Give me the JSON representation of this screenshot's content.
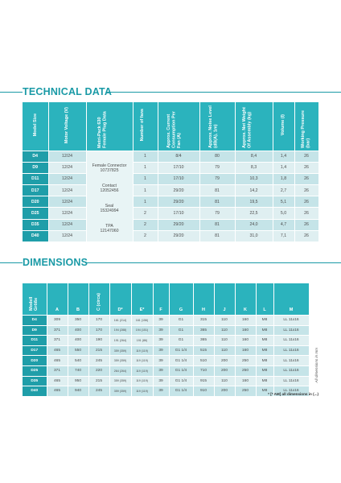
{
  "technical": {
    "title": "TECHNICAL DATA",
    "headers": [
      "Model Size",
      "Motor Voltage (V)",
      "Metri-Pack 630 Female Plug Data",
      "Number of fans",
      "Approx. Current Consumption Per Fan (A)",
      "Approx. Noise Level (dB(A), 1m)",
      "Approx. Net Weight Of Assembly (kg)",
      "Volume (l)",
      "Working Pressure (bar)"
    ],
    "plug_text": [
      "Female Connector",
      "10737825",
      "Contact",
      "12052456",
      "Seal",
      "15324994",
      "TPA",
      "12147060"
    ],
    "rows": [
      {
        "model": "D4",
        "voltage": "12/24",
        "fans": "1",
        "current": "8/4",
        "noise": "80",
        "weight": "8,4",
        "volume": "1,4",
        "pressure": "26"
      },
      {
        "model": "D9",
        "voltage": "12/24",
        "fans": "1",
        "current": "17/10",
        "noise": "79",
        "weight": "8,3",
        "volume": "1,4",
        "pressure": "26"
      },
      {
        "model": "D11",
        "voltage": "12/24",
        "fans": "1",
        "current": "17/10",
        "noise": "79",
        "weight": "10,3",
        "volume": "1,8",
        "pressure": "26"
      },
      {
        "model": "D17",
        "voltage": "12/24",
        "fans": "1",
        "current": "29/20",
        "noise": "81",
        "weight": "14,2",
        "volume": "2,7",
        "pressure": "26"
      },
      {
        "model": "D20",
        "voltage": "12/24",
        "fans": "1",
        "current": "29/20",
        "noise": "81",
        "weight": "19,5",
        "volume": "5,1",
        "pressure": "26"
      },
      {
        "model": "D25",
        "voltage": "12/24",
        "fans": "2",
        "current": "17/10",
        "noise": "79",
        "weight": "22,5",
        "volume": "5,0",
        "pressure": "26"
      },
      {
        "model": "D35",
        "voltage": "12/24",
        "fans": "2",
        "current": "29/20",
        "noise": "81",
        "weight": "24,0",
        "volume": "4,7",
        "pressure": "26"
      },
      {
        "model": "D40",
        "voltage": "12/24",
        "fans": "2",
        "current": "29/20",
        "noise": "81",
        "weight": "31,0",
        "volume": "7,1",
        "pressure": "26"
      }
    ]
  },
  "dimensions": {
    "title": "DIMENSIONS",
    "headers": [
      "Modell Größe",
      "A",
      "B",
      "C (circa)",
      "D*",
      "E*",
      "F",
      "G",
      "H",
      "J",
      "K",
      "L",
      "M"
    ],
    "rows": [
      [
        "D4",
        "309",
        "350",
        "170",
        "161 (214)",
        "161 (156)",
        "39",
        "G1",
        "315",
        "110",
        "160",
        "M8",
        "LL 11x16"
      ],
      [
        "D9",
        "371",
        "400",
        "170",
        "194 (288)",
        "194 (151)",
        "39",
        "G1",
        "365",
        "110",
        "160",
        "M8",
        "LL 11x16"
      ],
      [
        "D11",
        "371",
        "400",
        "190",
        "191 (264)",
        "191 (86)",
        "39",
        "G1",
        "365",
        "110",
        "160",
        "M8",
        "LL 11x16"
      ],
      [
        "D17",
        "465",
        "550",
        "215",
        "359 (359)",
        "119 (119)",
        "39",
        "G1 1/4",
        "515",
        "110",
        "160",
        "M8",
        "LL 11x16"
      ],
      [
        "D20",
        "465",
        "540",
        "245",
        "359 (359)",
        "119 (119)",
        "39",
        "G1 1/4",
        "510",
        "200",
        "250",
        "M8",
        "LL 11x16"
      ],
      [
        "D25",
        "371",
        "740",
        "220",
        "264 (264)",
        "119 (119)",
        "39",
        "G1 1/4",
        "710",
        "200",
        "250",
        "M8",
        "LL 11x16"
      ],
      [
        "D35",
        "465",
        "950",
        "215",
        "359 (359)",
        "119 (119)",
        "39",
        "G1 1/4",
        "915",
        "110",
        "160",
        "M8",
        "LL 11x16"
      ],
      [
        "D40",
        "465",
        "940",
        "245",
        "359 (359)",
        "119 (119)",
        "39",
        "G1 1/4",
        "910",
        "200",
        "250",
        "M8",
        "LL 11x16"
      ]
    ],
    "side_note": "All dimensions in mm",
    "foot_note": "* [* AM] all dimensions in (...)"
  }
}
